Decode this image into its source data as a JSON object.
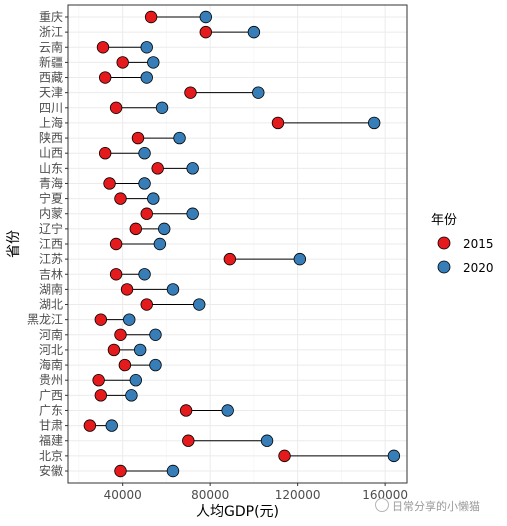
{
  "chart_data": {
    "type": "dumbbell",
    "xlabel": "人均GDP(元)",
    "ylabel": "省份",
    "xlim": [
      15000,
      170000
    ],
    "x_ticks": [
      40000,
      80000,
      120000,
      160000
    ],
    "x_tick_labels": [
      "40000",
      "80000",
      "120000",
      "160000"
    ],
    "grid": true,
    "legend_title": "年份",
    "legend_position": "right",
    "series": [
      {
        "name": "2015",
        "color": "#E41A1C"
      },
      {
        "name": "2020",
        "color": "#377EB8"
      }
    ],
    "categories": [
      "重庆",
      "浙江",
      "云南",
      "新疆",
      "西藏",
      "天津",
      "四川",
      "上海",
      "陕西",
      "山西",
      "山东",
      "青海",
      "宁夏",
      "内蒙",
      "辽宁",
      "江西",
      "江苏",
      "吉林",
      "湖南",
      "湖北",
      "黑龙江",
      "河南",
      "河北",
      "海南",
      "贵州",
      "广西",
      "广东",
      "甘肃",
      "福建",
      "北京",
      "安徽"
    ],
    "values_2015": [
      53000,
      78000,
      31000,
      40000,
      32000,
      71000,
      37000,
      111000,
      47000,
      32000,
      56000,
      34000,
      39000,
      51000,
      46000,
      37000,
      89000,
      37000,
      42000,
      51000,
      30000,
      39000,
      36000,
      41000,
      29000,
      30000,
      69000,
      25000,
      70000,
      114000,
      39000
    ],
    "values_2020": [
      78000,
      100000,
      51000,
      54000,
      51000,
      102000,
      58000,
      155000,
      66000,
      50000,
      72000,
      50000,
      54000,
      72000,
      59000,
      57000,
      121000,
      50000,
      63000,
      75000,
      43000,
      55000,
      48000,
      55000,
      46000,
      44000,
      88000,
      35000,
      106000,
      164000,
      63000
    ]
  },
  "watermark": {
    "text": "日常分享的小懒猫"
  }
}
